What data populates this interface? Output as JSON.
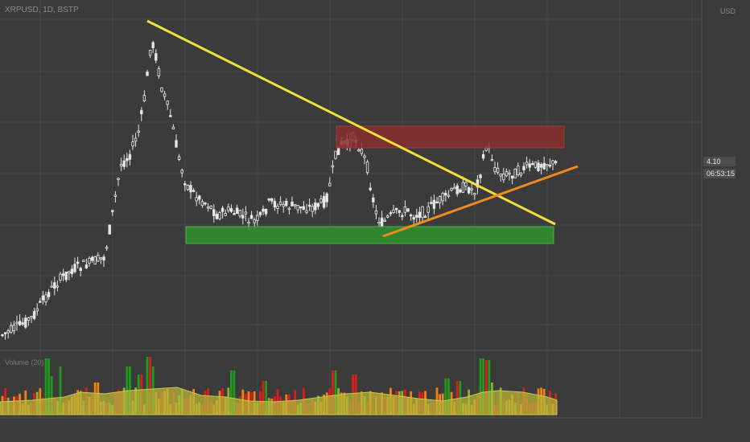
{
  "header": {
    "symbol": "XRPUSD, 1D, BSTP",
    "axis_top": "USD"
  },
  "volume_label": "Volume (20)",
  "price_tag": "4.10",
  "time_tag": "06:53:15",
  "colors": {
    "background": "#3b3b3b",
    "candle": "#e6e6e6",
    "trendline_down": "#f0e13a",
    "trendline_up": "#f08c1e",
    "resistance_zone": "#8b2e2e",
    "support_zone": "#2f8f2f",
    "volume_green": "#1f9a1f",
    "volume_red": "#d81e1e",
    "volume_orange": "#f0820f",
    "volume_ma": "#b5b53a"
  },
  "chart_data": {
    "type": "candlestick",
    "title": "",
    "series": [
      {
        "name": "price"
      }
    ],
    "volume_series": {
      "name": "volume"
    },
    "grid": true
  }
}
